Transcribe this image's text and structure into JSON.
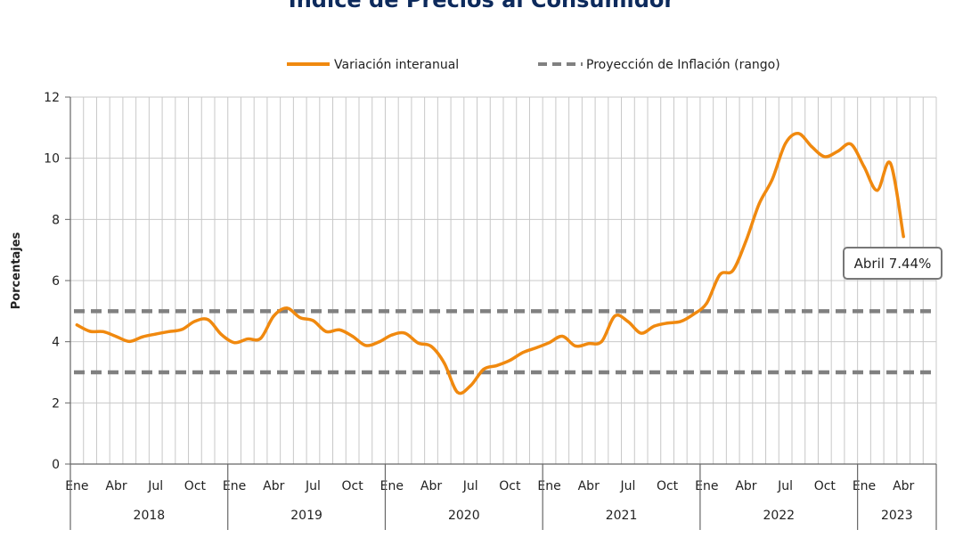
{
  "chart_data": {
    "type": "line",
    "title": "Índice de Precios al Consumidor",
    "ylabel": "Porcentajes",
    "ylim": [
      0,
      12
    ],
    "yticks": [
      0,
      2,
      4,
      6,
      8,
      10,
      12
    ],
    "grid": true,
    "legend_position": "top",
    "month_ticks": [
      "Ene",
      "Abr",
      "Jul",
      "Oct"
    ],
    "years": [
      "2018",
      "2019",
      "2020",
      "2021",
      "2022",
      "2023"
    ],
    "x": [
      "2018-01",
      "2018-02",
      "2018-03",
      "2018-04",
      "2018-05",
      "2018-06",
      "2018-07",
      "2018-08",
      "2018-09",
      "2018-10",
      "2018-11",
      "2018-12",
      "2019-01",
      "2019-02",
      "2019-03",
      "2019-04",
      "2019-05",
      "2019-06",
      "2019-07",
      "2019-08",
      "2019-09",
      "2019-10",
      "2019-11",
      "2019-12",
      "2020-01",
      "2020-02",
      "2020-03",
      "2020-04",
      "2020-05",
      "2020-06",
      "2020-07",
      "2020-08",
      "2020-09",
      "2020-10",
      "2020-11",
      "2020-12",
      "2021-01",
      "2021-02",
      "2021-03",
      "2021-04",
      "2021-05",
      "2021-06",
      "2021-07",
      "2021-08",
      "2021-09",
      "2021-10",
      "2021-11",
      "2021-12",
      "2022-01",
      "2022-02",
      "2022-03",
      "2022-04",
      "2022-05",
      "2022-06",
      "2022-07",
      "2022-08",
      "2022-09",
      "2022-10",
      "2022-11",
      "2022-12",
      "2023-01",
      "2023-02",
      "2023-03",
      "2023-04"
    ],
    "series": [
      {
        "name": "Variación interanual",
        "color": "#f0890f",
        "style": "solid",
        "values": [
          4.55,
          4.34,
          4.33,
          4.17,
          4.01,
          4.16,
          4.25,
          4.33,
          4.4,
          4.67,
          4.72,
          4.24,
          3.97,
          4.09,
          4.11,
          4.84,
          5.1,
          4.79,
          4.69,
          4.33,
          4.39,
          4.18,
          3.88,
          3.99,
          4.22,
          4.28,
          3.96,
          3.85,
          3.3,
          2.35,
          2.56,
          3.1,
          3.22,
          3.39,
          3.65,
          3.8,
          3.97,
          4.18,
          3.86,
          3.94,
          4.01,
          4.84,
          4.66,
          4.28,
          4.51,
          4.61,
          4.66,
          4.9,
          5.26,
          6.19,
          6.33,
          7.3,
          8.51,
          9.31,
          10.48,
          10.81,
          10.38,
          10.05,
          10.23,
          10.46,
          9.72,
          8.95,
          9.84,
          7.44
        ]
      },
      {
        "name": "Proyección de Inflación (rango)",
        "color": "#808080",
        "style": "dashed",
        "range": [
          3,
          5
        ]
      }
    ],
    "annotation": {
      "text": "Abril 7.44%",
      "x": "2023-04",
      "y": 7.44
    }
  }
}
